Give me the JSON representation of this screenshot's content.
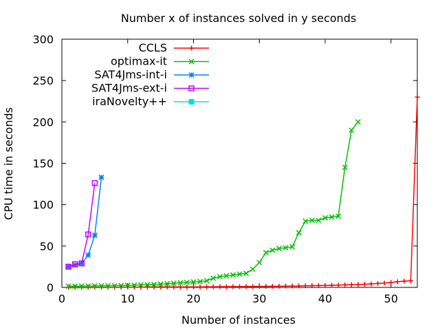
{
  "chart_data": {
    "type": "line",
    "title": "Number x of instances solved in y seconds",
    "xlabel": "Number of instances",
    "ylabel": "CPU time in seconds",
    "xlim": [
      0,
      54
    ],
    "ylim": [
      0,
      300
    ],
    "xticks": [
      0,
      10,
      20,
      30,
      40,
      50
    ],
    "yticks": [
      0,
      50,
      100,
      150,
      200,
      250,
      300
    ],
    "grid": false,
    "legend_position": "top-left",
    "series": [
      {
        "name": "CCLS",
        "color": "#ff0000",
        "marker": "plus",
        "x": [
          1,
          2,
          3,
          4,
          5,
          6,
          7,
          8,
          9,
          10,
          11,
          12,
          13,
          14,
          15,
          16,
          17,
          18,
          19,
          20,
          21,
          22,
          23,
          24,
          25,
          26,
          27,
          28,
          29,
          30,
          31,
          32,
          33,
          34,
          35,
          36,
          37,
          38,
          39,
          40,
          41,
          42,
          43,
          44,
          45,
          46,
          47,
          48,
          49,
          50,
          51,
          52,
          53,
          54
        ],
        "y": [
          0.1,
          0.1,
          0.1,
          0.1,
          0.2,
          0.2,
          0.2,
          0.2,
          0.3,
          0.3,
          0.3,
          0.3,
          0.4,
          0.4,
          0.4,
          0.5,
          0.5,
          0.5,
          0.6,
          0.6,
          0.6,
          0.7,
          0.7,
          0.8,
          0.8,
          0.9,
          0.9,
          1,
          1,
          1.1,
          1.2,
          1.3,
          1.4,
          1.5,
          1.6,
          1.7,
          1.9,
          2.1,
          2.2,
          2.3,
          2.5,
          2.7,
          3,
          3.2,
          3.5,
          3.8,
          4.2,
          4.7,
          5.2,
          6,
          6.8,
          7.5,
          8,
          230
        ]
      },
      {
        "name": "optimax-it",
        "color": "#00c000",
        "marker": "x",
        "x": [
          1,
          2,
          3,
          4,
          5,
          6,
          7,
          8,
          9,
          10,
          11,
          12,
          13,
          14,
          15,
          16,
          17,
          18,
          19,
          20,
          21,
          22,
          23,
          24,
          25,
          26,
          27,
          28,
          29,
          30,
          31,
          32,
          33,
          34,
          35,
          36,
          37,
          38,
          39,
          40,
          41,
          42,
          43,
          44,
          45
        ],
        "y": [
          1.5,
          1.5,
          1.6,
          1.7,
          1.8,
          1.9,
          2.0,
          2.1,
          2.3,
          2.5,
          2.7,
          3,
          3.3,
          3.6,
          4,
          4.5,
          5,
          5.5,
          6,
          6.5,
          7,
          8,
          11,
          13,
          14,
          15,
          16,
          17,
          22,
          30,
          42,
          45,
          47,
          48,
          49,
          66,
          80,
          81,
          81,
          84,
          85,
          86,
          145,
          190,
          200
        ]
      },
      {
        "name": "SAT4Jms-int-i",
        "color": "#0080ff",
        "marker": "star",
        "x": [
          1,
          2,
          3,
          4,
          5,
          6
        ],
        "y": [
          25,
          27,
          29,
          39,
          63,
          133
        ]
      },
      {
        "name": "SAT4Jms-ext-i",
        "color": "#c000ff",
        "marker": "square",
        "x": [
          1,
          2,
          3,
          4,
          5
        ],
        "y": [
          25,
          28,
          29,
          64,
          126
        ]
      },
      {
        "name": "iraNovelty++",
        "color": "#00e0e0",
        "marker": "filled-square",
        "x": [],
        "y": []
      }
    ]
  }
}
